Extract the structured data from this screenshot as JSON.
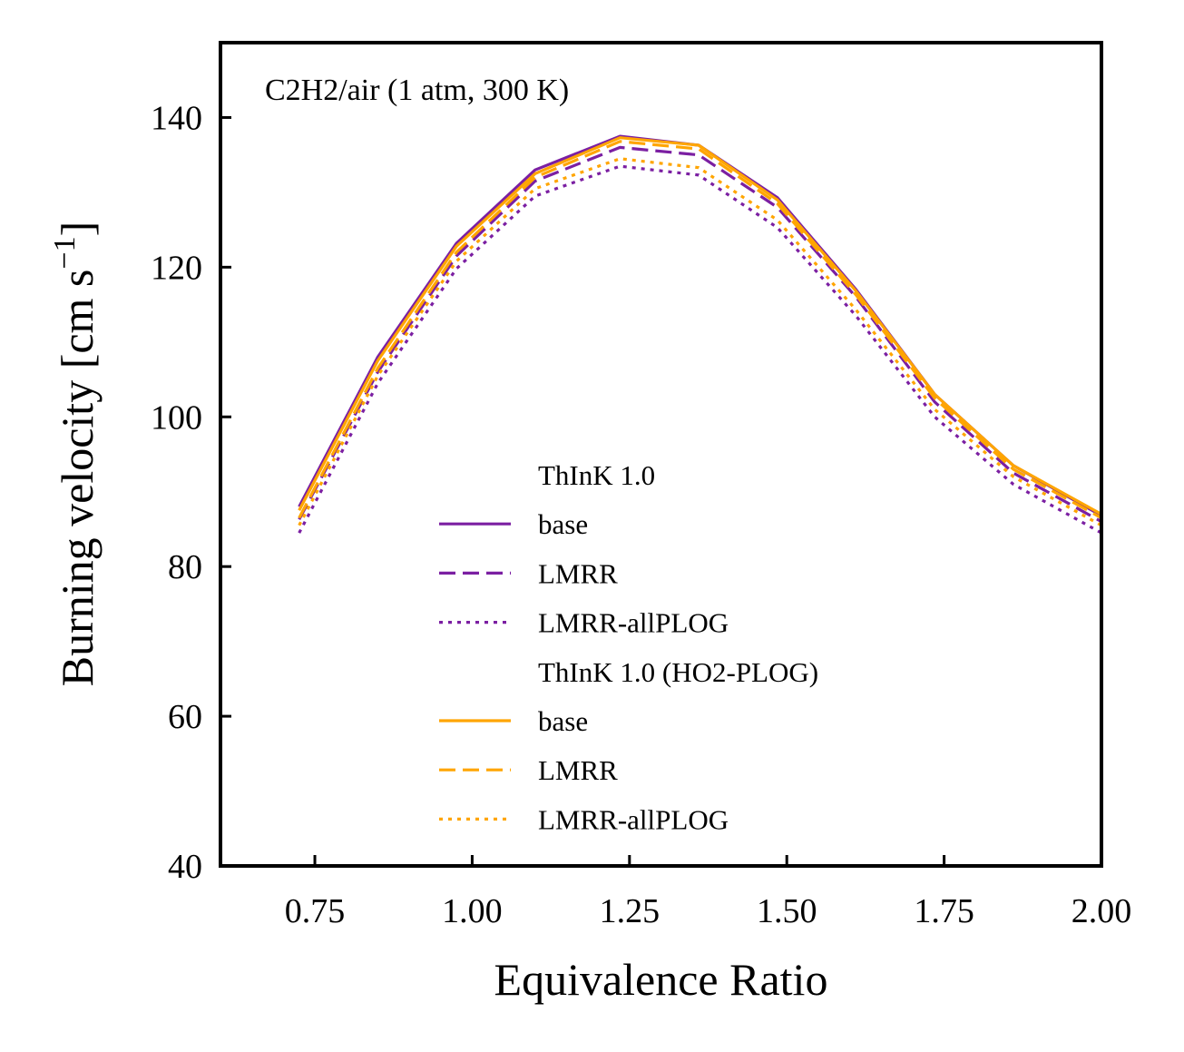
{
  "chart_data": {
    "type": "line",
    "annotation": "C2H2/air (1 atm, 300 K)",
    "xlabel": "Equivalence Ratio",
    "ylabel_main": "Burning velocity [cm s",
    "ylabel_sup": "−1",
    "ylabel_close": "]",
    "xlim": [
      0.6,
      2.0
    ],
    "ylim": [
      40,
      150
    ],
    "xticks": [
      0.75,
      1.0,
      1.25,
      1.5,
      1.75,
      2.0
    ],
    "xtick_labels": [
      "0.75",
      "1.00",
      "1.25",
      "1.50",
      "1.75",
      "2.00"
    ],
    "yticks": [
      40,
      60,
      80,
      100,
      120,
      140
    ],
    "ytick_labels": [
      "40",
      "60",
      "80",
      "100",
      "120",
      "140"
    ],
    "grid": false,
    "legend_position": "lower-center",
    "legend": [
      {
        "kind": "header",
        "label": "ThInK 1.0"
      },
      {
        "kind": "entry",
        "label": "base",
        "color": "#7b1fa2",
        "dash": "solid"
      },
      {
        "kind": "entry",
        "label": "LMRR",
        "color": "#7b1fa2",
        "dash": "dashed"
      },
      {
        "kind": "entry",
        "label": "LMRR-allPLOG",
        "color": "#7b1fa2",
        "dash": "dotted"
      },
      {
        "kind": "header",
        "label": "ThInK 1.0 (HO2-PLOG)"
      },
      {
        "kind": "entry",
        "label": "base",
        "color": "#ffa500",
        "dash": "solid"
      },
      {
        "kind": "entry",
        "label": "LMRR",
        "color": "#ffa500",
        "dash": "dashed"
      },
      {
        "kind": "entry",
        "label": "LMRR-allPLOG",
        "color": "#ffa500",
        "dash": "dotted"
      }
    ],
    "x": [
      0.725,
      0.85,
      0.975,
      1.1,
      1.235,
      1.36,
      1.485,
      1.61,
      1.735,
      1.86,
      2.0
    ],
    "series": [
      {
        "group": "ThInK 1.0",
        "name": "base",
        "color": "#7b1fa2",
        "dash": "solid",
        "values": [
          88.0,
          108.0,
          123.2,
          133.0,
          137.5,
          136.3,
          129.3,
          117.0,
          103.0,
          93.5,
          86.8
        ]
      },
      {
        "group": "ThInK 1.0",
        "name": "LMRR",
        "color": "#7b1fa2",
        "dash": "dashed",
        "values": [
          86.3,
          106.0,
          121.5,
          131.5,
          136.0,
          135.0,
          128.0,
          116.0,
          102.0,
          92.5,
          86.0
        ]
      },
      {
        "group": "ThInK 1.0",
        "name": "LMRR-allPLOG",
        "color": "#7b1fa2",
        "dash": "dotted",
        "values": [
          84.5,
          104.5,
          119.8,
          129.5,
          133.5,
          132.3,
          125.3,
          113.5,
          100.0,
          91.0,
          84.5
        ]
      },
      {
        "group": "ThInK 1.0 (HO2-PLOG)",
        "name": "base",
        "color": "#ffa500",
        "dash": "solid",
        "values": [
          87.5,
          107.5,
          122.8,
          132.5,
          137.3,
          136.3,
          129.0,
          116.8,
          103.0,
          93.5,
          87.0
        ]
      },
      {
        "group": "ThInK 1.0 (HO2-PLOG)",
        "name": "LMRR",
        "color": "#ffa500",
        "dash": "dashed",
        "values": [
          86.5,
          106.5,
          122.0,
          132.0,
          136.8,
          135.8,
          128.5,
          116.3,
          102.5,
          93.0,
          86.5
        ]
      },
      {
        "group": "ThInK 1.0 (HO2-PLOG)",
        "name": "LMRR-allPLOG",
        "color": "#ffa500",
        "dash": "dotted",
        "values": [
          85.5,
          105.5,
          120.8,
          130.5,
          134.5,
          133.3,
          126.3,
          114.3,
          101.0,
          92.0,
          85.5
        ]
      }
    ]
  }
}
